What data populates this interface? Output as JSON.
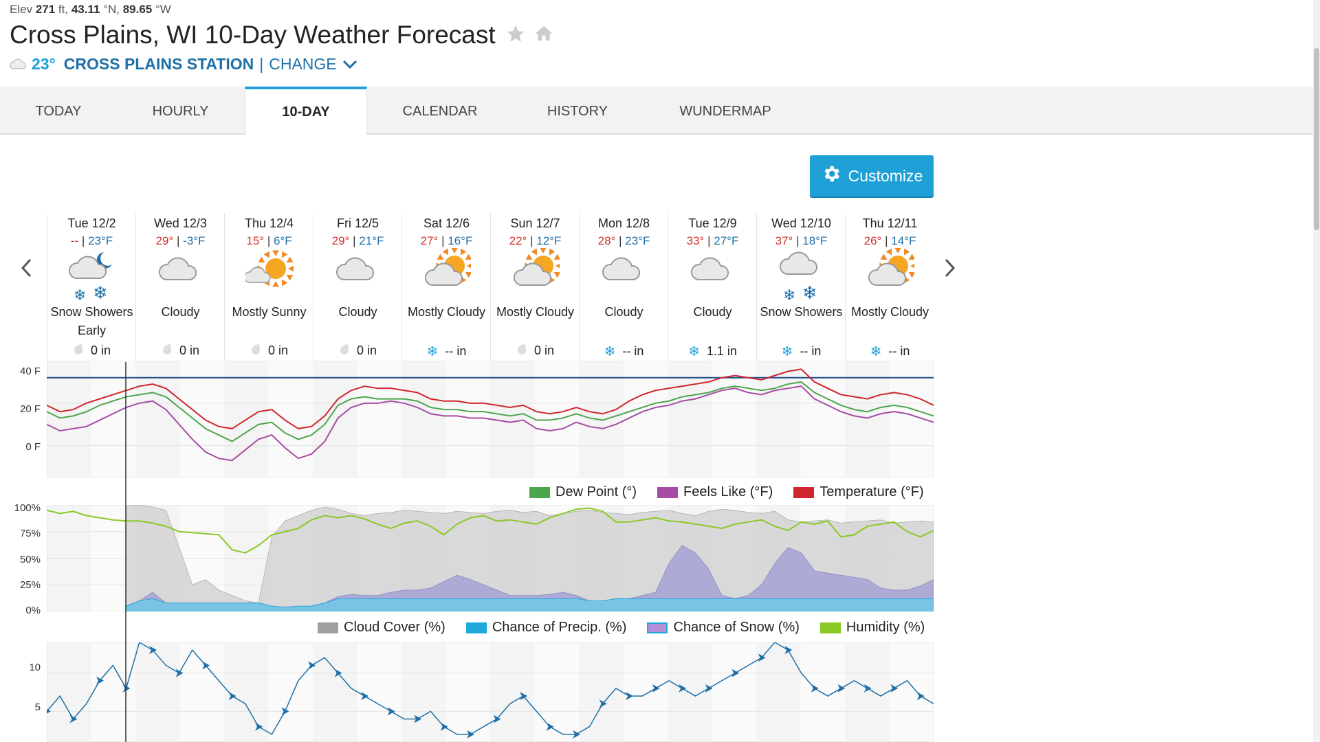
{
  "header": {
    "elev_label": "Elev",
    "elev_value": "271",
    "elev_unit": "ft,",
    "lat_value": "43.11",
    "lat_unit": "°N,",
    "lon_value": "89.65",
    "lon_unit": "°W",
    "title": "Cross Plains, WI 10-Day Weather Forecast",
    "current_temp": "23°",
    "station": "CROSS PLAINS STATION",
    "separator": "|",
    "change_label": "CHANGE"
  },
  "tabs": [
    {
      "label": "TODAY",
      "active": false
    },
    {
      "label": "HOURLY",
      "active": false
    },
    {
      "label": "10-DAY",
      "active": true
    },
    {
      "label": "CALENDAR",
      "active": false
    },
    {
      "label": "HISTORY",
      "active": false
    },
    {
      "label": "WUNDERMAP",
      "active": false
    }
  ],
  "customize_label": "Customize",
  "days": [
    {
      "name": "Tue 12/2",
      "hi": "--",
      "lo": "23°F",
      "icon": "snow-showers-night-icon",
      "cond": "Snow Showers Early",
      "precip_icon": "rain-drop-icon",
      "precip": "0 in"
    },
    {
      "name": "Wed 12/3",
      "hi": "29°",
      "lo": "-3°F",
      "icon": "cloudy-icon",
      "cond": "Cloudy",
      "precip_icon": "rain-drop-icon",
      "precip": "0 in"
    },
    {
      "name": "Thu 12/4",
      "hi": "15°",
      "lo": "6°F",
      "icon": "mostly-sunny-icon",
      "cond": "Mostly Sunny",
      "precip_icon": "rain-drop-icon",
      "precip": "0 in"
    },
    {
      "name": "Fri 12/5",
      "hi": "29°",
      "lo": "21°F",
      "icon": "cloudy-icon",
      "cond": "Cloudy",
      "precip_icon": "rain-drop-icon",
      "precip": "0 in"
    },
    {
      "name": "Sat 12/6",
      "hi": "27°",
      "lo": "16°F",
      "icon": "mostly-cloudy-icon",
      "cond": "Mostly Cloudy",
      "precip_icon": "snowflake-icon",
      "precip": "-- in"
    },
    {
      "name": "Sun 12/7",
      "hi": "22°",
      "lo": "12°F",
      "icon": "mostly-cloudy-icon",
      "cond": "Mostly Cloudy",
      "precip_icon": "rain-drop-icon",
      "precip": "0 in"
    },
    {
      "name": "Mon 12/8",
      "hi": "28°",
      "lo": "23°F",
      "icon": "cloudy-icon",
      "cond": "Cloudy",
      "precip_icon": "snowflake-icon",
      "precip": "-- in"
    },
    {
      "name": "Tue 12/9",
      "hi": "33°",
      "lo": "27°F",
      "icon": "cloudy-icon",
      "cond": "Cloudy",
      "precip_icon": "snowflake-icon",
      "precip": "1.1 in"
    },
    {
      "name": "Wed 12/10",
      "hi": "37°",
      "lo": "18°F",
      "icon": "snow-showers-icon",
      "cond": "Snow Showers",
      "precip_icon": "snowflake-icon",
      "precip": "-- in"
    },
    {
      "name": "Thu 12/11",
      "hi": "26°",
      "lo": "14°F",
      "icon": "mostly-cloudy-icon",
      "cond": "Mostly Cloudy",
      "precip_icon": "snowflake-icon",
      "precip": "-- in"
    }
  ],
  "legends": {
    "temp": [
      "Dew Point (°)",
      "Feels Like (°F)",
      "Temperature (°F)"
    ],
    "precip": [
      "Cloud Cover (%)",
      "Chance of Precip. (%)",
      "Chance of Snow (%)",
      "Humidity (%)"
    ]
  },
  "colors": {
    "accent": "#1e9fd5",
    "dew_point": "#4ca64c",
    "feels_like": "#a64ca6",
    "temperature": "#d0252f",
    "cloud_cover": "#a0a0a0",
    "precip": "#1ea9dc",
    "snow": "#b58ed8",
    "humidity": "#8ac926",
    "wind": "#1e6fa8"
  },
  "chart_data": [
    {
      "type": "line",
      "y_ticks": [
        "40 F",
        "20 F",
        "0 F"
      ],
      "ylim": [
        -15,
        40
      ],
      "series": [
        {
          "name": "Temperature (°F)",
          "values": [
            19,
            16,
            17,
            20,
            22,
            24,
            26,
            28,
            29,
            27,
            22,
            17,
            12,
            9,
            8,
            12,
            16,
            17,
            12,
            8,
            9,
            14,
            22,
            26,
            28,
            27,
            27,
            26,
            25,
            22,
            21,
            21,
            20,
            20,
            19,
            18,
            19,
            16,
            15,
            16,
            18,
            16,
            15,
            17,
            21,
            24,
            26,
            27,
            28,
            29,
            30,
            32,
            33,
            32,
            31,
            33,
            35,
            36,
            30,
            27,
            24,
            23,
            22,
            24,
            25,
            24,
            22,
            19
          ]
        },
        {
          "name": "Feels Like (°F)",
          "values": [
            10,
            7,
            8,
            9,
            12,
            15,
            18,
            20,
            21,
            17,
            10,
            3,
            -3,
            -6,
            -7,
            -2,
            3,
            5,
            -1,
            -6,
            -4,
            2,
            13,
            18,
            20,
            20,
            21,
            20,
            18,
            15,
            14,
            14,
            13,
            13,
            12,
            11,
            12,
            8,
            7,
            8,
            11,
            9,
            8,
            10,
            13,
            16,
            18,
            19,
            21,
            22,
            24,
            26,
            27,
            25,
            24,
            26,
            27,
            28,
            22,
            19,
            16,
            14,
            13,
            15,
            16,
            15,
            13,
            11
          ]
        },
        {
          "name": "Dew Point (°)",
          "values": [
            16,
            13,
            14,
            16,
            19,
            21,
            23,
            24,
            25,
            23,
            18,
            13,
            8,
            5,
            2,
            6,
            10,
            11,
            6,
            3,
            5,
            10,
            19,
            22,
            23,
            22,
            22,
            22,
            21,
            18,
            17,
            17,
            16,
            16,
            15,
            14,
            15,
            12,
            12,
            13,
            15,
            13,
            12,
            14,
            16,
            18,
            20,
            21,
            23,
            24,
            25,
            27,
            28,
            27,
            26,
            27,
            29,
            30,
            25,
            22,
            19,
            17,
            16,
            18,
            19,
            18,
            16,
            14
          ]
        }
      ],
      "reference_line": 32
    },
    {
      "type": "area",
      "y_ticks": [
        "100%",
        "75%",
        "50%",
        "25%",
        "0%"
      ],
      "ylim": [
        0,
        100
      ],
      "series": [
        {
          "name": "Cloud Cover (%)",
          "values": [
            null,
            null,
            null,
            null,
            null,
            null,
            99,
            100,
            98,
            95,
            60,
            25,
            30,
            20,
            15,
            10,
            8,
            70,
            85,
            90,
            95,
            98,
            96,
            92,
            90,
            92,
            93,
            95,
            94,
            93,
            92,
            94,
            93,
            92,
            94,
            95,
            93,
            94,
            90,
            92,
            94,
            95,
            93,
            92,
            91,
            93,
            94,
            95,
            92,
            90,
            94,
            96,
            95,
            93,
            92,
            94,
            86,
            84,
            85,
            86,
            83,
            84,
            85,
            86,
            83,
            84,
            85,
            84
          ]
        },
        {
          "name": "Chance of Precip. (%)",
          "values": [
            null,
            null,
            null,
            null,
            null,
            null,
            5,
            10,
            18,
            8,
            8,
            8,
            8,
            8,
            8,
            8,
            8,
            5,
            4,
            5,
            5,
            8,
            14,
            16,
            15,
            15,
            18,
            20,
            20,
            22,
            28,
            34,
            30,
            25,
            20,
            15,
            15,
            15,
            16,
            18,
            15,
            10,
            10,
            12,
            12,
            15,
            18,
            45,
            62,
            55,
            40,
            15,
            12,
            15,
            25,
            45,
            60,
            55,
            38,
            36,
            34,
            32,
            30,
            22,
            20,
            20,
            24,
            30
          ]
        },
        {
          "name": "Chance of Snow (%)",
          "values": [
            null,
            null,
            null,
            null,
            null,
            null,
            5,
            10,
            18,
            8,
            8,
            8,
            8,
            8,
            8,
            8,
            8,
            5,
            4,
            5,
            5,
            8,
            14,
            16,
            15,
            15,
            18,
            20,
            20,
            22,
            28,
            34,
            30,
            25,
            20,
            15,
            15,
            15,
            16,
            18,
            15,
            10,
            10,
            12,
            12,
            15,
            18,
            45,
            62,
            55,
            40,
            15,
            12,
            15,
            25,
            45,
            60,
            55,
            38,
            36,
            34,
            32,
            30,
            22,
            20,
            20,
            24,
            30
          ]
        },
        {
          "name": "Humidity (%)",
          "values": [
            95,
            92,
            94,
            90,
            88,
            86,
            85,
            85,
            83,
            80,
            75,
            74,
            73,
            72,
            58,
            55,
            62,
            72,
            75,
            78,
            86,
            90,
            88,
            90,
            87,
            82,
            78,
            83,
            85,
            80,
            72,
            82,
            88,
            90,
            85,
            86,
            84,
            82,
            88,
            92,
            96,
            97,
            94,
            84,
            84,
            86,
            88,
            85,
            84,
            82,
            80,
            78,
            82,
            84,
            86,
            80,
            76,
            84,
            82,
            85,
            70,
            72,
            80,
            82,
            84,
            75,
            70,
            76
          ]
        }
      ]
    },
    {
      "type": "line",
      "y_ticks": [
        "10",
        "5"
      ],
      "ylim": [
        1,
        14
      ],
      "series": [
        {
          "name": "",
          "values": [
            5,
            7,
            4,
            6,
            9,
            11,
            8,
            14,
            13,
            11,
            10,
            13,
            11,
            9,
            7,
            6,
            3,
            2,
            5,
            9,
            11,
            12,
            10,
            8,
            7,
            6,
            5,
            4,
            4,
            5,
            3,
            2,
            2,
            3,
            4,
            6,
            7,
            5,
            3,
            2,
            2,
            3,
            6,
            8,
            7,
            7,
            8,
            9,
            8,
            7,
            8,
            9,
            10,
            11,
            12,
            14,
            13,
            10,
            8,
            7,
            8,
            9,
            8,
            7,
            8,
            9,
            7,
            6
          ]
        }
      ]
    }
  ]
}
